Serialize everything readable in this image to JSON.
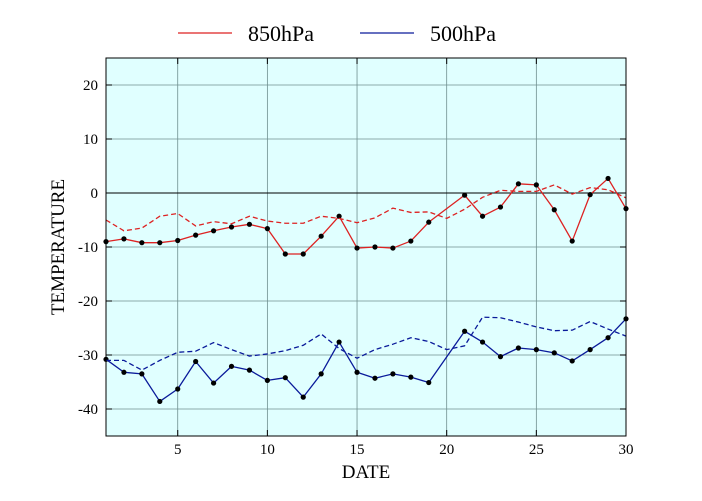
{
  "chart_data": {
    "type": "line",
    "xlabel": "DATE",
    "ylabel": "TEMPERATURE",
    "xlim": [
      1,
      30
    ],
    "ylim": [
      -45,
      25
    ],
    "xticks": [
      5,
      10,
      15,
      20,
      25,
      30
    ],
    "yticks": [
      20,
      10,
      0,
      -10,
      -20,
      -30,
      -40
    ],
    "grid": true,
    "legend_position": "top",
    "zero_line": true,
    "colors": {
      "background": "#e0ffff",
      "grid": "#6f8f8f",
      "850hPa": "#dd2222",
      "500hPa": "#0a1a9a"
    },
    "series": [
      {
        "name": "850hPa",
        "level": "850hPa",
        "style": "solid-markers",
        "x": [
          1,
          2,
          3,
          4,
          5,
          6,
          7,
          8,
          9,
          10,
          11,
          12,
          13,
          14,
          15,
          16,
          17,
          18,
          19,
          21,
          22,
          23,
          24,
          25,
          26,
          27,
          28,
          29,
          30
        ],
        "y": [
          -9.0,
          -8.5,
          -9.2,
          -9.2,
          -8.8,
          -7.8,
          -7.0,
          -6.3,
          -5.8,
          -6.6,
          -11.3,
          -11.3,
          -8.0,
          -4.3,
          -10.2,
          -10.0,
          -10.2,
          -8.9,
          -5.4,
          -0.4,
          -4.3,
          -2.6,
          1.7,
          1.5,
          -3.1,
          -8.9,
          -0.3,
          2.7,
          -2.9
        ]
      },
      {
        "name": "",
        "level": "850hPa",
        "style": "dashed",
        "x": [
          1,
          2,
          3,
          4,
          5,
          6,
          7,
          8,
          9,
          10,
          11,
          12,
          13,
          14,
          15,
          16,
          17,
          18,
          19,
          20,
          21,
          22,
          23,
          24,
          25,
          26,
          27,
          28,
          29,
          30
        ],
        "y": [
          -5.0,
          -7.0,
          -6.5,
          -4.3,
          -3.8,
          -6.1,
          -5.3,
          -5.7,
          -4.3,
          -5.2,
          -5.6,
          -5.6,
          -4.3,
          -4.7,
          -5.5,
          -4.6,
          -2.8,
          -3.6,
          -3.5,
          -4.7,
          -3.0,
          -0.8,
          0.5,
          0.3,
          0.3,
          1.5,
          -0.2,
          1.0,
          0.6,
          -0.9
        ]
      },
      {
        "name": "500hPa",
        "level": "500hPa",
        "style": "solid-markers",
        "x": [
          1,
          2,
          3,
          4,
          5,
          6,
          7,
          8,
          9,
          10,
          11,
          12,
          13,
          14,
          15,
          16,
          17,
          18,
          19,
          21,
          22,
          23,
          24,
          25,
          26,
          27,
          28,
          29,
          30
        ],
        "y": [
          -30.8,
          -33.2,
          -33.5,
          -38.6,
          -36.3,
          -31.2,
          -35.2,
          -32.1,
          -32.8,
          -34.7,
          -34.2,
          -37.8,
          -33.5,
          -27.6,
          -33.2,
          -34.3,
          -33.5,
          -34.1,
          -35.1,
          -25.6,
          -27.6,
          -30.3,
          -28.7,
          -29.0,
          -29.6,
          -31.1,
          -29.0,
          -26.8,
          -23.3
        ]
      },
      {
        "name": "",
        "level": "500hPa",
        "style": "dashed",
        "x": [
          1,
          2,
          3,
          4,
          5,
          6,
          7,
          8,
          9,
          10,
          11,
          12,
          13,
          14,
          15,
          16,
          17,
          18,
          19,
          20,
          21,
          22,
          23,
          24,
          25,
          26,
          27,
          28,
          29,
          30
        ],
        "y": [
          -31.0,
          -31.0,
          -32.8,
          -31.0,
          -29.5,
          -29.3,
          -27.7,
          -29.0,
          -30.2,
          -29.8,
          -29.2,
          -28.2,
          -26.1,
          -28.8,
          -30.6,
          -29.0,
          -28.0,
          -26.8,
          -27.5,
          -29.0,
          -28.3,
          -23.0,
          -23.1,
          -23.9,
          -24.8,
          -25.5,
          -25.4,
          -23.8,
          -25.2,
          -26.5
        ]
      }
    ]
  }
}
